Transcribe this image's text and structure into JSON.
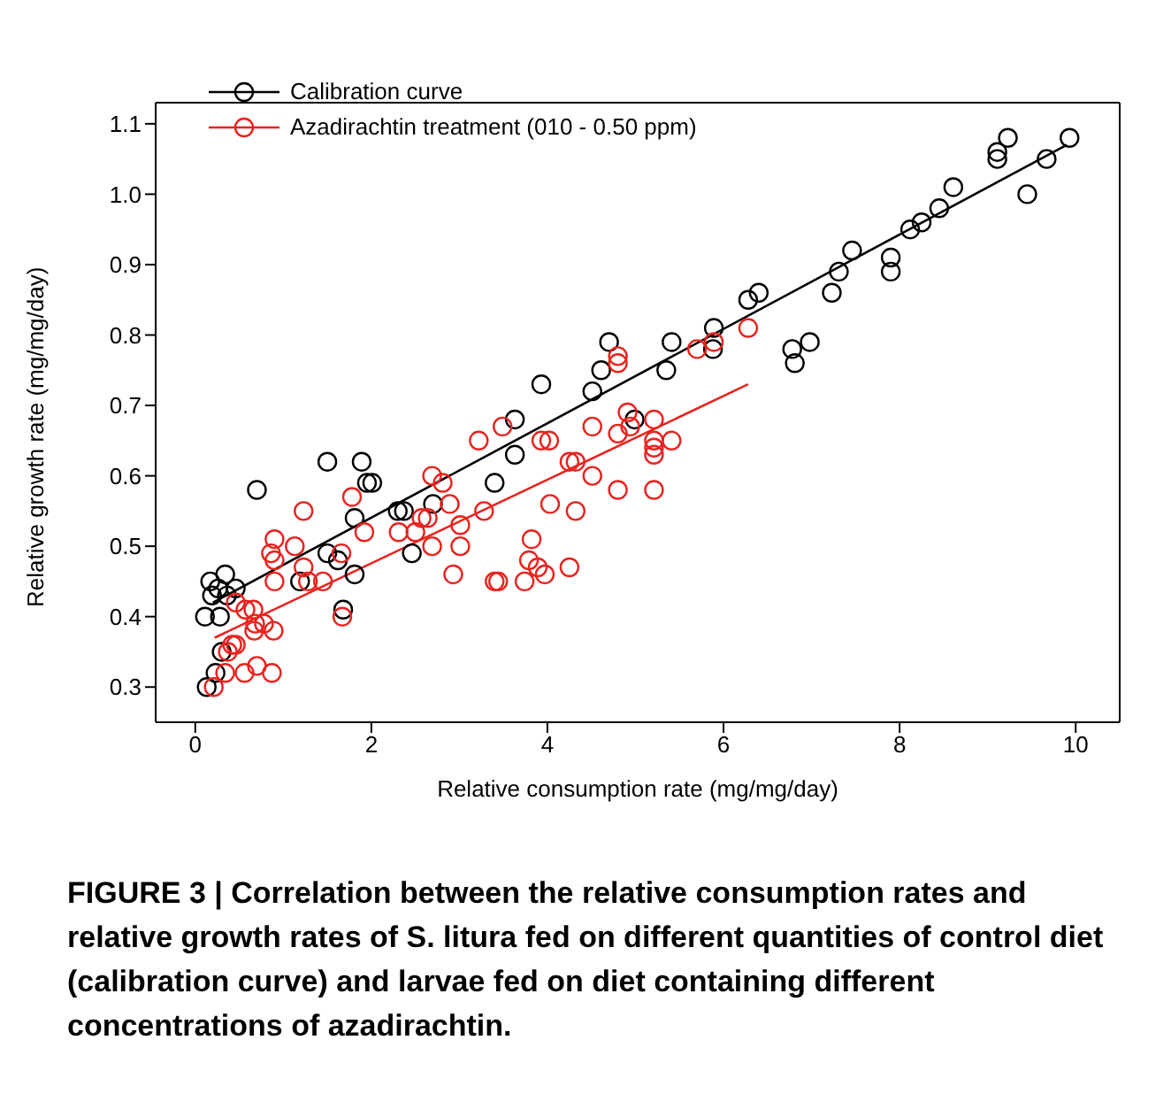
{
  "chart_data": {
    "type": "scatter",
    "xlabel": "Relative consumption rate (mg/mg/day)",
    "ylabel": "Relative growth rate (mg/mg/day)",
    "xlim": [
      -0.45,
      10.5
    ],
    "ylim": [
      0.25,
      1.13
    ],
    "xticks": [
      0,
      2,
      4,
      6,
      8,
      10
    ],
    "yticks": [
      0.3,
      0.4,
      0.5,
      0.6,
      0.7,
      0.8,
      0.9,
      {
        "value": 1,
        "label": "1.0"
      },
      1.1
    ],
    "legend": "top left",
    "marker": "circle",
    "series": [
      {
        "name": "Calibration curve",
        "color": "#000000",
        "x": [
          0.11,
          0.17,
          0.19,
          0.26,
          0.34,
          0.36,
          0.28,
          0.46,
          0.3,
          0.23,
          0.13,
          0.7,
          1.19,
          1.5,
          1.5,
          1.62,
          1.68,
          1.81,
          1.81,
          1.89,
          1.95,
          2.01,
          2.3,
          2.37,
          2.46,
          2.7,
          3.4,
          3.63,
          3.63,
          3.93,
          4.51,
          4.61,
          4.7,
          4.99,
          5.35,
          5.41,
          5.88,
          5.89,
          6.28,
          6.4,
          6.78,
          6.81,
          6.98,
          7.23,
          7.31,
          7.46,
          7.9,
          7.9,
          8.12,
          8.25,
          8.45,
          8.61,
          9.11,
          9.11,
          9.23,
          9.45,
          9.67,
          9.93
        ],
        "values": [
          0.4,
          0.45,
          0.43,
          0.44,
          0.46,
          0.43,
          0.4,
          0.44,
          0.35,
          0.32,
          0.3,
          0.58,
          0.45,
          0.49,
          0.62,
          0.48,
          0.41,
          0.46,
          0.54,
          0.62,
          0.59,
          0.59,
          0.55,
          0.55,
          0.49,
          0.56,
          0.59,
          0.63,
          0.68,
          0.73,
          0.72,
          0.75,
          0.79,
          0.68,
          0.75,
          0.79,
          0.78,
          0.81,
          0.85,
          0.86,
          0.78,
          0.76,
          0.79,
          0.86,
          0.89,
          0.92,
          0.91,
          0.89,
          0.95,
          0.96,
          0.98,
          1.01,
          1.06,
          1.05,
          1.08,
          1.0,
          1.05,
          1.08
        ]
      },
      {
        "name": "Azadirachtin treatment (010 - 0.50 ppm)",
        "color": "#e8231e",
        "x": [
          0.21,
          0.34,
          0.37,
          0.42,
          0.46,
          0.46,
          0.57,
          0.66,
          0.68,
          0.67,
          0.56,
          0.7,
          0.78,
          0.87,
          0.89,
          0.86,
          0.9,
          0.9,
          0.9,
          1.13,
          1.23,
          1.23,
          1.28,
          1.45,
          1.66,
          1.67,
          1.78,
          1.92,
          2.31,
          2.5,
          2.57,
          2.64,
          2.69,
          2.69,
          2.81,
          2.89,
          2.93,
          3.01,
          3.01,
          3.22,
          3.28,
          3.4,
          3.49,
          3.44,
          3.74,
          3.79,
          3.82,
          3.89,
          3.97,
          3.93,
          4.02,
          4.03,
          4.25,
          4.32,
          4.25,
          4.32,
          4.51,
          4.51,
          4.8,
          4.8,
          4.8,
          4.8,
          4.91,
          4.94,
          5.21,
          5.21,
          5.21,
          5.21,
          5.21,
          5.41,
          5.7,
          5.89,
          6.28
        ],
        "values": [
          0.3,
          0.32,
          0.35,
          0.36,
          0.36,
          0.42,
          0.41,
          0.41,
          0.39,
          0.38,
          0.32,
          0.33,
          0.39,
          0.32,
          0.38,
          0.49,
          0.51,
          0.48,
          0.45,
          0.5,
          0.55,
          0.47,
          0.45,
          0.45,
          0.49,
          0.4,
          0.57,
          0.52,
          0.52,
          0.52,
          0.54,
          0.54,
          0.6,
          0.5,
          0.59,
          0.56,
          0.46,
          0.53,
          0.5,
          0.65,
          0.55,
          0.45,
          0.67,
          0.45,
          0.45,
          0.48,
          0.51,
          0.47,
          0.46,
          0.65,
          0.65,
          0.56,
          0.62,
          0.62,
          0.47,
          0.55,
          0.6,
          0.67,
          0.77,
          0.76,
          0.66,
          0.58,
          0.69,
          0.67,
          0.68,
          0.65,
          0.64,
          0.63,
          0.58,
          0.65,
          0.78,
          0.79,
          0.81
        ]
      },
      {
        "type": "line",
        "color": "#000000",
        "marker": "none",
        "x": [
          0.2,
          9.9
        ],
        "values": [
          0.42,
          1.07
        ]
      },
      {
        "type": "line",
        "color": "#e8231e",
        "marker": "none",
        "x": [
          0.22,
          6.28
        ],
        "values": [
          0.37,
          0.73
        ]
      }
    ],
    "annotations": [
      "FIGURE 3 | Correlation between the relative consumption rates and relative growth rates of S. litura fed on different quantities of control diet (calibration curve) and larvae fed on diet containing different concentrations of azadirachtin."
    ]
  }
}
